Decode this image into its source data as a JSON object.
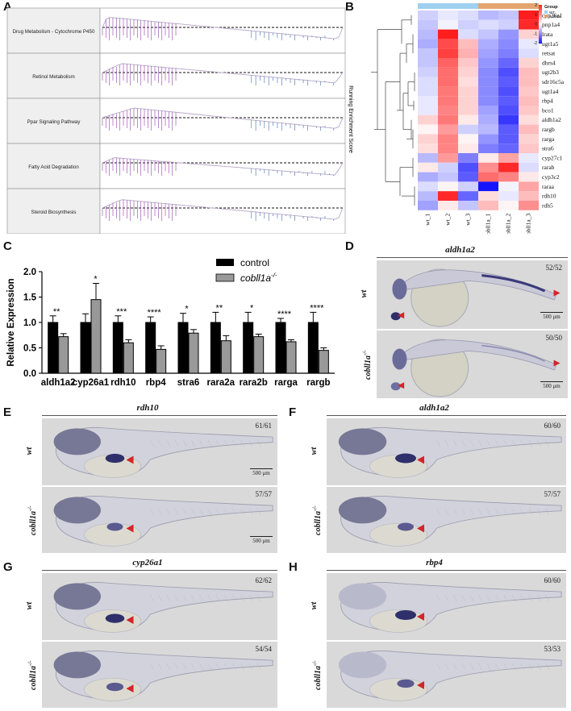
{
  "panels": {
    "A": "A",
    "B": "B",
    "C": "C",
    "D": "D",
    "E": "E",
    "F": "F",
    "G": "G",
    "H": "H"
  },
  "gsea": {
    "pathways": [
      "Drug Metabolism - Cytochrome P450",
      "Retinol Metabolism",
      "Ppar Signaling Pathway",
      "Fatty Acid Degradation",
      "Steroid Biosynthesis"
    ],
    "ylabel": "Running Enrichment Score"
  },
  "heatmap": {
    "genes": [
      "cyp26a1",
      "pnp1a4",
      "lrata",
      "ugt1a5",
      "retsat",
      "dhrs4",
      "ugt2b3",
      "sdr16c5a",
      "ugt1a4",
      "rbp4",
      "bco1",
      "aldh1a2",
      "rargb",
      "rarga",
      "stra6",
      "cyp27c1",
      "rarab",
      "cyp3c2",
      "raraa",
      "rdh10",
      "rdh5"
    ],
    "samples": [
      "wt_1",
      "wt_2",
      "wt_3",
      "cobll1a_1",
      "cobll1a_2",
      "cobll1a_3"
    ],
    "legend_title": "Group",
    "groups": [
      "WT",
      "cobll1a"
    ],
    "group_colors": [
      "#9fd0ef",
      "#e2a56f"
    ],
    "scale_ticks": [
      "2",
      "1",
      "0",
      "-1",
      "-2"
    ],
    "values": [
      [
        -0.4,
        -0.2,
        -0.3,
        -0.6,
        -0.5,
        2.0
      ],
      [
        -0.5,
        -0.1,
        -0.4,
        -0.3,
        -0.4,
        1.9
      ],
      [
        -0.6,
        2.0,
        -0.3,
        -0.5,
        -0.9,
        0.4
      ],
      [
        -0.7,
        1.6,
        0.6,
        -0.7,
        -1.0,
        -0.2
      ],
      [
        -0.5,
        1.7,
        0.7,
        -0.8,
        -1.1,
        -0.3
      ],
      [
        -0.5,
        1.4,
        0.5,
        -0.9,
        -1.3,
        0.4
      ],
      [
        -0.4,
        1.3,
        0.4,
        -1.0,
        -1.5,
        0.6
      ],
      [
        -0.3,
        1.3,
        0.3,
        -1.0,
        -1.4,
        0.6
      ],
      [
        -0.3,
        1.2,
        0.4,
        -1.0,
        -1.5,
        0.5
      ],
      [
        -0.2,
        1.2,
        0.4,
        -1.0,
        -1.4,
        0.6
      ],
      [
        -0.2,
        1.1,
        0.4,
        -0.8,
        -1.5,
        0.5
      ],
      [
        0.4,
        1.2,
        0.2,
        -0.7,
        -1.7,
        0.3
      ],
      [
        0.1,
        0.9,
        -0.4,
        -0.6,
        -1.4,
        0.6
      ],
      [
        0.4,
        1.1,
        0.1,
        -0.9,
        -1.4,
        0.4
      ],
      [
        0.3,
        1.1,
        0.2,
        -1.1,
        -1.3,
        0.5
      ],
      [
        -0.6,
        0.9,
        -1.1,
        0.2,
        0.8,
        -0.2
      ],
      [
        0.2,
        -0.4,
        -1.5,
        1.0,
        1.9,
        -0.3
      ],
      [
        -0.7,
        -0.5,
        -1.4,
        1.3,
        1.1,
        0.2
      ],
      [
        -0.3,
        0.1,
        -0.4,
        -2.0,
        -0.1,
        0.8
      ],
      [
        -0.6,
        1.9,
        -1.3,
        0.3,
        -0.2,
        0.6
      ],
      [
        -0.8,
        0.2,
        -0.5,
        0.6,
        0.1,
        1.0
      ]
    ]
  },
  "chart_data": {
    "type": "bar",
    "categories": [
      "aldh1a2",
      "cyp26a1",
      "rdh10",
      "rbp4",
      "stra6",
      "rara2a",
      "rara2b",
      "rarga",
      "rargb"
    ],
    "ylabel": "Relative Expression",
    "ylim": [
      0,
      2.0
    ],
    "yticks": [
      "0.0",
      "0.5",
      "1.0",
      "1.5",
      "2.0"
    ],
    "series": [
      {
        "name": "control",
        "color": "#000000",
        "values": [
          1.0,
          1.0,
          1.0,
          1.0,
          1.0,
          1.0,
          1.0,
          1.0,
          1.0
        ],
        "errors": [
          0.13,
          0.17,
          0.13,
          0.11,
          0.18,
          0.2,
          0.2,
          0.08,
          0.2
        ]
      },
      {
        "name": "cobll1a",
        "color": "#999999",
        "values": [
          0.72,
          1.45,
          0.6,
          0.47,
          0.79,
          0.64,
          0.72,
          0.62,
          0.45
        ],
        "errors": [
          0.06,
          0.32,
          0.06,
          0.07,
          0.07,
          0.1,
          0.05,
          0.04,
          0.05
        ]
      }
    ],
    "significance": [
      "**",
      "*",
      "***",
      "****",
      "*",
      "**",
      "*",
      "****",
      "****"
    ],
    "legend": {
      "control": "control",
      "mutant_base": "cobll1a",
      "mutant_sup": "-/-"
    }
  },
  "ish": {
    "D": {
      "gene": "aldh1a2",
      "wt_label": "wt",
      "mut_label": "cobll1a",
      "sup": "-/-",
      "wt_count": "52/52",
      "mut_count": "50/50",
      "scale": "500 μm"
    },
    "E": {
      "gene": "rdh10",
      "wt_label": "wt",
      "mut_label": "cobll1a",
      "sup": "-/-",
      "wt_count": "61/61",
      "mut_count": "57/57",
      "scale": "500 μm"
    },
    "F": {
      "gene": "aldh1a2",
      "wt_label": "wt",
      "mut_label": "cobll1a",
      "sup": "-/-",
      "wt_count": "60/60",
      "mut_count": "57/57"
    },
    "G": {
      "gene": "cyp26a1",
      "wt_label": "wt",
      "mut_label": "cobll1a",
      "sup": "-/-",
      "wt_count": "62/62",
      "mut_count": "54/54"
    },
    "H": {
      "gene": "rbp4",
      "wt_label": "wt",
      "mut_label": "cobll1a",
      "sup": "-/-",
      "wt_count": "60/60",
      "mut_count": "53/53"
    }
  }
}
